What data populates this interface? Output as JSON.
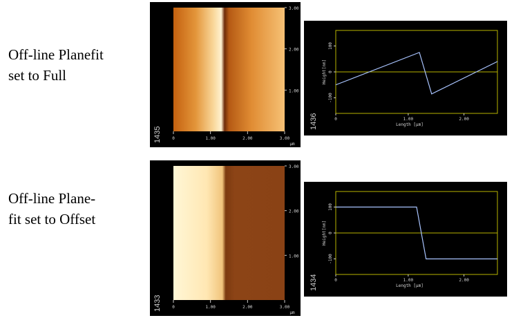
{
  "rows": [
    {
      "caption": [
        "Off-line Planefit",
        "set to Full"
      ],
      "image": {
        "id": "1435",
        "scan_type": "gradient-step",
        "x_ticks": [
          "0",
          "1.00",
          "2.00",
          "3.00"
        ],
        "x_unit": "µm",
        "y_ticks": [
          "3.00",
          "2.00",
          "1.00"
        ]
      },
      "profile": {
        "id": "1436",
        "xlabel": "Length [µm]",
        "ylabel": "Height[nm]",
        "x_ticks": [
          "0",
          "1.00",
          "2.00"
        ],
        "y_ticks": [
          "100",
          "0",
          "-100"
        ],
        "chart_data": {
          "type": "line",
          "x": [
            0,
            1.5,
            1.72,
            2.9
          ],
          "y": [
            -50,
            75,
            -85,
            40
          ],
          "xlim": [
            0,
            2.9
          ],
          "ylim": [
            -160,
            160
          ],
          "ylabel": "Height[nm]",
          "xlabel": "Length [µm]",
          "grid": false
        }
      }
    },
    {
      "caption": [
        "Off-line Plane-",
        "fit set to Offset"
      ],
      "image": {
        "id": "1433",
        "scan_type": "flat-step",
        "x_ticks": [
          "0",
          "1.00",
          "2.00",
          "3.00"
        ],
        "x_unit": "µm",
        "y_ticks": [
          "3.00",
          "2.00",
          "1.00"
        ]
      },
      "profile": {
        "id": "1434",
        "xlabel": "Length [µm]",
        "ylabel": "Height[nm]",
        "x_ticks": [
          "0",
          "1.00",
          "2.00"
        ],
        "y_ticks": [
          "100",
          "0",
          "-100"
        ],
        "chart_data": {
          "type": "line",
          "x": [
            0,
            1.45,
            1.62,
            2.9
          ],
          "y": [
            100,
            100,
            -100,
            -100
          ],
          "xlim": [
            0,
            2.9
          ],
          "ylim": [
            -160,
            160
          ],
          "ylabel": "Height[nm]",
          "xlabel": "Length [µm]",
          "grid": false
        }
      }
    }
  ],
  "colors": {
    "frame": "#b8b400",
    "trace": "#a9c4ff",
    "tick_text": "#d8d8d8"
  }
}
